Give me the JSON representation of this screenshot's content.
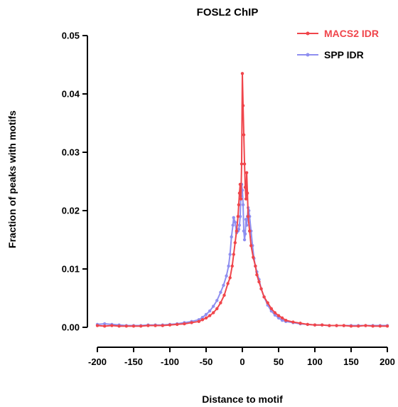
{
  "chart_data": {
    "type": "line",
    "title": "FOSL2 ChIP",
    "xlabel": "Distance to motif",
    "ylabel": "Fraction of peaks with motifs",
    "xlim": [
      -200,
      200
    ],
    "ylim": [
      0,
      0.05
    ],
    "x_ticks": [
      -200,
      -150,
      -100,
      -50,
      0,
      50,
      100,
      150,
      200
    ],
    "y_ticks": [
      0.0,
      0.01,
      0.02,
      0.03,
      0.04,
      0.05
    ],
    "y_tick_labels": [
      "0.00",
      "0.01",
      "0.02",
      "0.03",
      "0.04",
      "0.05"
    ],
    "grid": false,
    "legend_position": "top-right",
    "series": [
      {
        "name": "MACS2 IDR",
        "color": "#f0454b",
        "points": [
          [
            -200,
            0.0003
          ],
          [
            -190,
            0.0002
          ],
          [
            -180,
            0.0003
          ],
          [
            -170,
            0.0002
          ],
          [
            -160,
            0.0002
          ],
          [
            -150,
            0.0002
          ],
          [
            -140,
            0.0002
          ],
          [
            -130,
            0.0003
          ],
          [
            -120,
            0.0003
          ],
          [
            -110,
            0.0003
          ],
          [
            -100,
            0.0004
          ],
          [
            -90,
            0.0005
          ],
          [
            -80,
            0.0006
          ],
          [
            -70,
            0.0008
          ],
          [
            -60,
            0.001
          ],
          [
            -55,
            0.0013
          ],
          [
            -50,
            0.0016
          ],
          [
            -45,
            0.002
          ],
          [
            -40,
            0.0025
          ],
          [
            -35,
            0.0032
          ],
          [
            -30,
            0.0042
          ],
          [
            -25,
            0.0055
          ],
          [
            -20,
            0.0075
          ],
          [
            -17,
            0.0085
          ],
          [
            -14,
            0.0105
          ],
          [
            -12,
            0.0125
          ],
          [
            -10,
            0.0145
          ],
          [
            -8,
            0.0165
          ],
          [
            -6,
            0.019
          ],
          [
            -5,
            0.021
          ],
          [
            -4,
            0.023
          ],
          [
            -3,
            0.0245
          ],
          [
            -2,
            0.022
          ],
          [
            -1,
            0.028
          ],
          [
            0,
            0.0435
          ],
          [
            1,
            0.038
          ],
          [
            2,
            0.033
          ],
          [
            3,
            0.028
          ],
          [
            4,
            0.024
          ],
          [
            5,
            0.022
          ],
          [
            6,
            0.0265
          ],
          [
            7,
            0.023
          ],
          [
            8,
            0.019
          ],
          [
            10,
            0.0165
          ],
          [
            12,
            0.014
          ],
          [
            15,
            0.012
          ],
          [
            18,
            0.0105
          ],
          [
            20,
            0.009
          ],
          [
            23,
            0.0078
          ],
          [
            26,
            0.0066
          ],
          [
            30,
            0.0052
          ],
          [
            35,
            0.0042
          ],
          [
            40,
            0.0032
          ],
          [
            45,
            0.0025
          ],
          [
            50,
            0.002
          ],
          [
            55,
            0.0016
          ],
          [
            60,
            0.0012
          ],
          [
            70,
            0.0009
          ],
          [
            80,
            0.0007
          ],
          [
            90,
            0.0005
          ],
          [
            100,
            0.0004
          ],
          [
            110,
            0.0004
          ],
          [
            120,
            0.0003
          ],
          [
            130,
            0.0003
          ],
          [
            140,
            0.0003
          ],
          [
            150,
            0.0002
          ],
          [
            160,
            0.0002
          ],
          [
            170,
            0.0003
          ],
          [
            180,
            0.0002
          ],
          [
            190,
            0.0002
          ],
          [
            200,
            0.0002
          ]
        ]
      },
      {
        "name": "SPP IDR",
        "color": "#8f8ff0",
        "points": [
          [
            -200,
            0.0005
          ],
          [
            -190,
            0.0006
          ],
          [
            -180,
            0.0005
          ],
          [
            -170,
            0.0004
          ],
          [
            -160,
            0.0003
          ],
          [
            -150,
            0.0003
          ],
          [
            -140,
            0.0003
          ],
          [
            -130,
            0.0004
          ],
          [
            -120,
            0.0004
          ],
          [
            -110,
            0.0004
          ],
          [
            -100,
            0.0005
          ],
          [
            -90,
            0.0006
          ],
          [
            -80,
            0.0008
          ],
          [
            -70,
            0.001
          ],
          [
            -60,
            0.0013
          ],
          [
            -55,
            0.0017
          ],
          [
            -50,
            0.0022
          ],
          [
            -45,
            0.0028
          ],
          [
            -40,
            0.0036
          ],
          [
            -35,
            0.0046
          ],
          [
            -30,
            0.006
          ],
          [
            -26,
            0.0072
          ],
          [
            -22,
            0.0088
          ],
          [
            -19,
            0.0105
          ],
          [
            -17,
            0.0125
          ],
          [
            -15,
            0.0155
          ],
          [
            -13,
            0.0175
          ],
          [
            -12,
            0.0188
          ],
          [
            -10,
            0.018
          ],
          [
            -8,
            0.0162
          ],
          [
            -6,
            0.0165
          ],
          [
            -5,
            0.0168
          ],
          [
            -4,
            0.0175
          ],
          [
            -3,
            0.019
          ],
          [
            -2,
            0.0225
          ],
          [
            -1,
            0.0245
          ],
          [
            0,
            0.0235
          ],
          [
            1,
            0.021
          ],
          [
            2,
            0.0165
          ],
          [
            3,
            0.015
          ],
          [
            4,
            0.016
          ],
          [
            5,
            0.0185
          ],
          [
            6,
            0.0175
          ],
          [
            7,
            0.019
          ],
          [
            8,
            0.0205
          ],
          [
            9,
            0.02
          ],
          [
            10,
            0.019
          ],
          [
            12,
            0.0165
          ],
          [
            14,
            0.014
          ],
          [
            16,
            0.0118
          ],
          [
            18,
            0.0105
          ],
          [
            20,
            0.0095
          ],
          [
            23,
            0.0082
          ],
          [
            26,
            0.0066
          ],
          [
            30,
            0.0052
          ],
          [
            35,
            0.0038
          ],
          [
            40,
            0.0028
          ],
          [
            45,
            0.0021
          ],
          [
            50,
            0.0016
          ],
          [
            55,
            0.0012
          ],
          [
            60,
            0.001
          ],
          [
            70,
            0.0008
          ],
          [
            80,
            0.0006
          ],
          [
            90,
            0.0005
          ],
          [
            100,
            0.0004
          ],
          [
            110,
            0.0004
          ],
          [
            120,
            0.0003
          ],
          [
            130,
            0.0003
          ],
          [
            140,
            0.0003
          ],
          [
            150,
            0.0003
          ],
          [
            160,
            0.0003
          ],
          [
            170,
            0.0003
          ],
          [
            180,
            0.0003
          ],
          [
            190,
            0.0003
          ],
          [
            200,
            0.0003
          ]
        ]
      }
    ]
  }
}
